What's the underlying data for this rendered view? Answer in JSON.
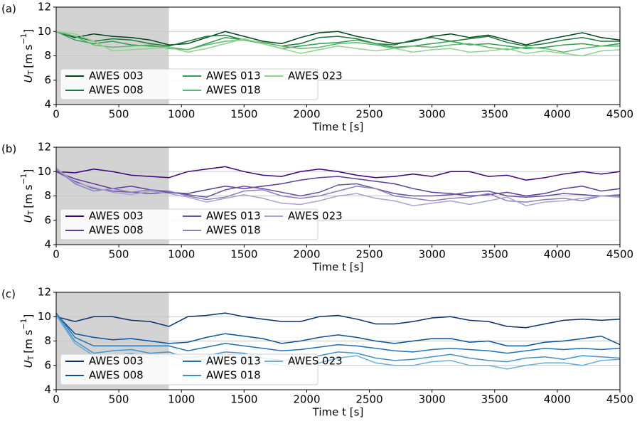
{
  "chart_data": [
    {
      "type": "line",
      "panel_label": "(a)",
      "xlabel": "Time t [s]",
      "ylabel": {
        "main": "U",
        "sub": "T",
        "unit": "[m s",
        "sup": "−1",
        "end": "]"
      },
      "x": [
        0,
        150,
        300,
        450,
        600,
        750,
        900,
        1050,
        1200,
        1350,
        1500,
        1650,
        1800,
        1950,
        2100,
        2250,
        2400,
        2550,
        2700,
        2850,
        3000,
        3150,
        3300,
        3450,
        3600,
        3750,
        3900,
        4050,
        4200,
        4350,
        4500
      ],
      "series": [
        {
          "name": "AWES 003",
          "color": "#00441b",
          "values": [
            10,
            9.5,
            9.8,
            9.6,
            9.5,
            9.3,
            8.9,
            9.0,
            9.5,
            10.0,
            9.6,
            9.2,
            9.0,
            9.5,
            9.9,
            10.0,
            9.6,
            9.3,
            9.0,
            9.2,
            9.6,
            9.8,
            9.5,
            9.7,
            9.3,
            8.9,
            9.3,
            9.6,
            9.9,
            9.5,
            9.3
          ]
        },
        {
          "name": "AWES 008",
          "color": "#1b7837",
          "values": [
            10,
            9.6,
            9.2,
            9.4,
            9.3,
            9.0,
            8.8,
            9.2,
            9.6,
            9.7,
            9.3,
            9.1,
            8.8,
            9.0,
            9.5,
            9.6,
            9.4,
            9.0,
            8.9,
            9.3,
            9.5,
            9.2,
            9.4,
            9.6,
            9.1,
            8.8,
            9.0,
            9.3,
            9.5,
            9.2,
            9.2
          ]
        },
        {
          "name": "AWES 013",
          "color": "#2f9e4f",
          "values": [
            10,
            9.3,
            9.0,
            9.2,
            8.9,
            8.8,
            8.7,
            8.5,
            9.0,
            9.5,
            9.3,
            9.0,
            8.6,
            8.8,
            9.0,
            9.1,
            9.3,
            9.0,
            8.7,
            8.8,
            9.0,
            9.2,
            8.9,
            9.0,
            8.8,
            8.6,
            8.7,
            8.9,
            9.0,
            8.8,
            9.0
          ]
        },
        {
          "name": "AWES 018",
          "color": "#5cb86b",
          "values": [
            10,
            9.6,
            8.9,
            8.7,
            8.8,
            8.9,
            8.6,
            8.5,
            8.9,
            9.2,
            9.3,
            9.1,
            8.8,
            8.6,
            8.7,
            9.0,
            9.1,
            8.9,
            8.6,
            8.8,
            8.7,
            8.9,
            9.0,
            8.7,
            8.5,
            8.7,
            8.6,
            8.3,
            8.6,
            8.8,
            8.8
          ]
        },
        {
          "name": "AWES 023",
          "color": "#90d28b",
          "values": [
            10,
            9.8,
            9.2,
            8.4,
            8.5,
            8.6,
            8.7,
            8.3,
            8.6,
            9.0,
            9.4,
            9.0,
            8.6,
            8.2,
            8.5,
            8.8,
            8.6,
            8.4,
            8.6,
            8.3,
            8.5,
            8.6,
            8.3,
            8.4,
            8.6,
            8.2,
            8.4,
            8.2,
            8.0,
            8.4,
            8.5
          ]
        }
      ],
      "xlim": [
        0,
        4500
      ],
      "xticks": [
        0,
        500,
        1000,
        1500,
        2000,
        2500,
        3000,
        3500,
        4000,
        4500
      ],
      "ylim": [
        4,
        12
      ],
      "yticks": [
        4,
        6,
        8,
        10,
        12
      ],
      "grid": "y",
      "legend": "lower left",
      "shade": [
        0,
        900
      ]
    },
    {
      "type": "line",
      "panel_label": "(b)",
      "xlabel": "Time t [s]",
      "ylabel": {
        "main": "U",
        "sub": "T",
        "unit": "[m s",
        "sup": "−1",
        "end": "]"
      },
      "x": [
        0,
        150,
        300,
        450,
        600,
        750,
        900,
        1050,
        1200,
        1350,
        1500,
        1650,
        1800,
        1950,
        2100,
        2250,
        2400,
        2550,
        2700,
        2850,
        3000,
        3150,
        3300,
        3450,
        3600,
        3750,
        3900,
        4050,
        4200,
        4350,
        4500
      ],
      "series": [
        {
          "name": "AWES 003",
          "color": "#3f007d",
          "values": [
            10,
            9.9,
            10.2,
            10.0,
            9.7,
            9.6,
            9.5,
            10.0,
            10.2,
            10.4,
            10.0,
            9.7,
            9.6,
            10.0,
            10.2,
            10.0,
            9.7,
            9.5,
            9.6,
            9.8,
            9.6,
            10.0,
            10.0,
            9.6,
            9.7,
            9.3,
            9.5,
            9.8,
            10.0,
            9.8,
            10.0
          ]
        },
        {
          "name": "AWES 008",
          "color": "#5e3c99",
          "values": [
            10,
            9.4,
            9.0,
            8.6,
            8.8,
            8.5,
            8.3,
            8.2,
            8.5,
            8.8,
            8.6,
            8.8,
            9.0,
            9.3,
            9.5,
            9.6,
            9.4,
            9.2,
            9.0,
            8.6,
            8.3,
            8.2,
            8.0,
            8.1,
            8.3,
            8.0,
            8.2,
            8.6,
            8.8,
            8.4,
            8.6
          ]
        },
        {
          "name": "AWES 013",
          "color": "#6a51a3",
          "values": [
            10,
            9.2,
            8.6,
            8.4,
            8.3,
            8.2,
            8.3,
            8.1,
            7.9,
            8.5,
            8.8,
            8.6,
            8.3,
            8.0,
            8.3,
            8.9,
            9.0,
            8.6,
            8.2,
            8.0,
            8.0,
            8.1,
            8.3,
            8.4,
            8.0,
            7.9,
            8.0,
            8.2,
            8.1,
            8.0,
            8.0
          ]
        },
        {
          "name": "AWES 018",
          "color": "#8c7dbd",
          "values": [
            10.2,
            9.0,
            8.4,
            8.6,
            8.3,
            8.5,
            8.4,
            8.0,
            7.7,
            7.9,
            8.4,
            8.5,
            8.0,
            7.8,
            8.0,
            8.4,
            8.8,
            8.6,
            8.0,
            7.8,
            7.6,
            7.8,
            7.9,
            8.2,
            7.6,
            7.5,
            7.7,
            7.8,
            7.6,
            8.0,
            8.1
          ]
        },
        {
          "name": "AWES 023",
          "color": "#aaa3d0",
          "values": [
            10.3,
            9.1,
            8.7,
            8.3,
            8.1,
            8.4,
            8.2,
            7.9,
            7.5,
            7.8,
            8.1,
            7.8,
            7.4,
            7.3,
            7.6,
            8.0,
            8.2,
            7.8,
            7.6,
            7.2,
            7.4,
            7.6,
            7.3,
            7.6,
            7.9,
            7.2,
            7.5,
            7.6,
            7.8,
            8.0,
            7.9
          ]
        }
      ],
      "xlim": [
        0,
        4500
      ],
      "xticks": [
        0,
        500,
        1000,
        1500,
        2000,
        2500,
        3000,
        3500,
        4000,
        4500
      ],
      "ylim": [
        4,
        12
      ],
      "yticks": [
        4,
        6,
        8,
        10,
        12
      ],
      "grid": "y",
      "legend": "lower left",
      "shade": [
        0,
        900
      ]
    },
    {
      "type": "line",
      "panel_label": "(c)",
      "xlabel": "Time t [s]",
      "ylabel": {
        "main": "U",
        "sub": "T",
        "unit": "[m s",
        "sup": "−1",
        "end": "]"
      },
      "x": [
        0,
        150,
        300,
        450,
        600,
        750,
        900,
        1050,
        1200,
        1350,
        1500,
        1650,
        1800,
        1950,
        2100,
        2250,
        2400,
        2550,
        2700,
        2850,
        3000,
        3150,
        3300,
        3450,
        3600,
        3750,
        3900,
        4050,
        4200,
        4350,
        4500
      ],
      "series": [
        {
          "name": "AWES 003",
          "color": "#08306b",
          "values": [
            10,
            9.6,
            10.0,
            10.0,
            9.7,
            9.6,
            9.2,
            10.0,
            10.1,
            10.3,
            10.0,
            9.8,
            9.6,
            9.6,
            10.0,
            10.1,
            9.8,
            9.4,
            9.4,
            9.6,
            9.9,
            10.0,
            9.7,
            9.6,
            9.2,
            9.1,
            9.4,
            9.7,
            9.8,
            9.7,
            9.8
          ]
        },
        {
          "name": "AWES 008",
          "color": "#08519c",
          "values": [
            10.2,
            8.6,
            8.3,
            8.1,
            8.2,
            8.0,
            7.8,
            7.9,
            8.3,
            8.6,
            8.4,
            8.2,
            7.8,
            8.0,
            8.3,
            8.5,
            8.3,
            8.0,
            7.8,
            8.0,
            8.2,
            8.2,
            7.9,
            8.0,
            7.6,
            7.6,
            7.9,
            8.0,
            8.2,
            8.4,
            7.7
          ]
        },
        {
          "name": "AWES 013",
          "color": "#2171b5",
          "values": [
            10.3,
            8.3,
            7.6,
            7.6,
            7.6,
            7.6,
            7.6,
            7.2,
            7.5,
            7.8,
            7.6,
            7.4,
            7.2,
            7.3,
            7.5,
            7.7,
            7.6,
            7.4,
            7.2,
            7.1,
            7.3,
            7.4,
            7.3,
            7.2,
            7.0,
            7.2,
            7.4,
            7.3,
            7.4,
            7.3,
            7.4
          ]
        },
        {
          "name": "AWES 018",
          "color": "#4292c6",
          "values": [
            10.2,
            8.0,
            7.0,
            7.2,
            7.3,
            7.0,
            7.1,
            6.6,
            6.8,
            7.1,
            7.0,
            6.6,
            6.4,
            6.5,
            6.8,
            7.1,
            7.0,
            6.6,
            6.4,
            6.5,
            6.7,
            6.9,
            6.6,
            6.4,
            6.3,
            6.6,
            6.7,
            6.5,
            6.8,
            6.7,
            6.6
          ]
        },
        {
          "name": "AWES 023",
          "color": "#6baed6",
          "values": [
            10.1,
            7.8,
            6.8,
            6.8,
            7.0,
            6.6,
            6.8,
            6.4,
            6.5,
            6.8,
            6.6,
            6.2,
            6.0,
            5.8,
            6.2,
            6.6,
            6.8,
            6.2,
            6.0,
            6.0,
            6.3,
            6.4,
            6.0,
            6.0,
            5.7,
            6.0,
            6.2,
            6.2,
            6.0,
            6.4,
            6.5
          ]
        }
      ],
      "xlim": [
        0,
        4500
      ],
      "xticks": [
        0,
        500,
        1000,
        1500,
        2000,
        2500,
        3000,
        3500,
        4000,
        4500
      ],
      "ylim": [
        4,
        12
      ],
      "yticks": [
        4,
        6,
        8,
        10,
        12
      ],
      "grid": "y",
      "legend": "lower left",
      "shade": [
        0,
        900
      ]
    }
  ]
}
